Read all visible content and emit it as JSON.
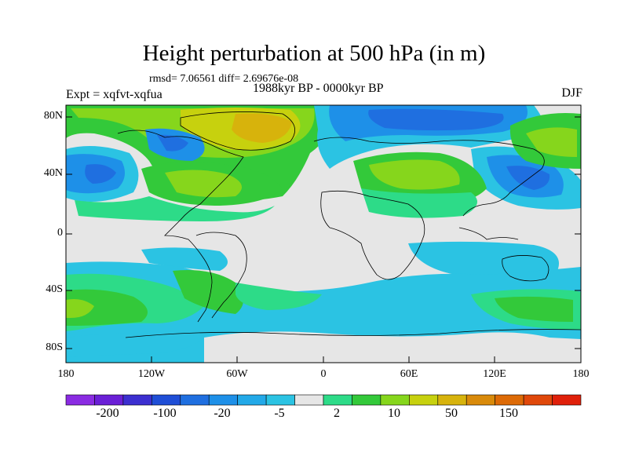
{
  "title": "Height perturbation at 500 hPa (in m)",
  "stats": "rmsd= 7.06561 diff= 2.69676e-08",
  "experiment": "Expt = xqfvt-xqfua",
  "period": "1988kyr BP - 0000kyr BP",
  "season": "DJF",
  "lat_labels": [
    "80N",
    "40N",
    "0",
    "40S",
    "80S"
  ],
  "lon_labels": [
    "180",
    "120W",
    "60W",
    "0",
    "60E",
    "120E",
    "180"
  ],
  "colorbar": {
    "colors": [
      "#8a2be2",
      "#6a1fd6",
      "#3c2fd0",
      "#1f4ed6",
      "#1f6fe0",
      "#1e90e8",
      "#22a9e8",
      "#2bc3e3",
      "#e6e6e6",
      "#2ddb88",
      "#33c93a",
      "#86d61c",
      "#c7d10e",
      "#d7b30c",
      "#d98a0a",
      "#dd6a06",
      "#e0480a",
      "#e0200a"
    ],
    "labels": [
      "-200",
      "-100",
      "-20",
      "-5",
      "2",
      "10",
      "50",
      "150"
    ]
  }
}
